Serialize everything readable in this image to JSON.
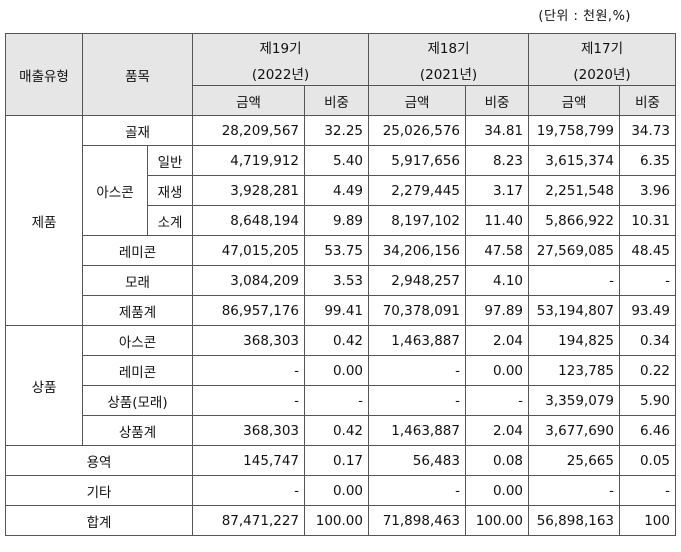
{
  "unit_note": "(단위 : 천원,%)",
  "header": {
    "col_type": "매출유형",
    "col_item": "품목",
    "periods": [
      {
        "label": "제19기",
        "year": "(2022년)"
      },
      {
        "label": "제18기",
        "year": "(2021년)"
      },
      {
        "label": "제17기",
        "year": "(2020년)"
      }
    ],
    "amount": "금액",
    "ratio": "비중"
  },
  "groups": {
    "product": "제품",
    "ascon": "아스콘",
    "goods": "상품"
  },
  "rows": [
    {
      "item": "골재",
      "v": [
        "28,209,567",
        "32.25",
        "25,026,576",
        "34.81",
        "19,758,799",
        "34.73"
      ]
    },
    {
      "item": "일반",
      "v": [
        "4,719,912",
        "5.40",
        "5,917,656",
        "8.23",
        "3,615,374",
        "6.35"
      ]
    },
    {
      "item": "재생",
      "v": [
        "3,928,281",
        "4.49",
        "2,279,445",
        "3.17",
        "2,251,548",
        "3.96"
      ]
    },
    {
      "item": "소계",
      "v": [
        "8,648,194",
        "9.89",
        "8,197,102",
        "11.40",
        "5,866,922",
        "10.31"
      ]
    },
    {
      "item": "레미콘",
      "v": [
        "47,015,205",
        "53.75",
        "34,206,156",
        "47.58",
        "27,569,085",
        "48.45"
      ]
    },
    {
      "item": "모래",
      "v": [
        "3,084,209",
        "3.53",
        "2,948,257",
        "4.10",
        "-",
        "-"
      ]
    },
    {
      "item": "제품계",
      "v": [
        "86,957,176",
        "99.41",
        "70,378,091",
        "97.89",
        "53,194,807",
        "93.49"
      ]
    },
    {
      "item": "아스콘",
      "v": [
        "368,303",
        "0.42",
        "1,463,887",
        "2.04",
        "194,825",
        "0.34"
      ]
    },
    {
      "item": "레미콘",
      "v": [
        "-",
        "0.00",
        "-",
        "0.00",
        "123,785",
        "0.22"
      ]
    },
    {
      "item": "상품(모래)",
      "v": [
        "-",
        "-",
        "-",
        "-",
        "3,359,079",
        "5.90"
      ]
    },
    {
      "item": "상품계",
      "v": [
        "368,303",
        "0.42",
        "1,463,887",
        "2.04",
        "3,677,690",
        "6.46"
      ]
    },
    {
      "item": "용역",
      "v": [
        "145,747",
        "0.17",
        "56,483",
        "0.08",
        "25,665",
        "0.05"
      ]
    },
    {
      "item": "기타",
      "v": [
        "-",
        "0.00",
        "-",
        "0.00",
        "-",
        "-"
      ]
    },
    {
      "item": "합계",
      "v": [
        "87,471,227",
        "100.00",
        "71,898,463",
        "100.00",
        "56,898,163",
        "100"
      ]
    }
  ]
}
